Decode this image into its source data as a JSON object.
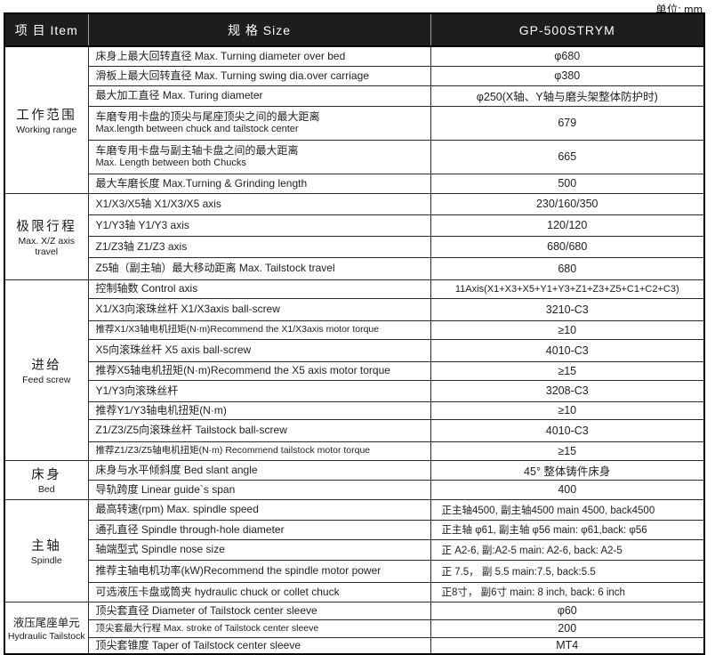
{
  "unit_label": "单位: mm",
  "header": {
    "item": "项 目 Item",
    "size": "规 格 Size",
    "model": "GP-500STRYM"
  },
  "sections": [
    {
      "category_zh": "工作范围",
      "category_en": "Working range",
      "rows": [
        {
          "label": "床身上最大回转直径 Max. Turning diameter over bed",
          "value": "φ680"
        },
        {
          "label": "滑板上最大回转直径 Max. Turning swing dia.over carriage",
          "value": "φ380"
        },
        {
          "label": "最大加工直径 Max. Turing diameter",
          "value": "φ250(X轴、Y轴与磨头架整体防护时)"
        },
        {
          "label": "车磨专用卡盘的顶尖与尾座顶尖之间的最大距离",
          "label2": "Max.length between chuck and tailstock center",
          "value": "679"
        },
        {
          "label": "车磨专用卡盘与副主轴卡盘之间的最大距离",
          "label2": "Max. Length between both Chucks",
          "value": "665"
        },
        {
          "label": "最大车磨长度  Max.Turning & Grinding length",
          "value": "500"
        }
      ]
    },
    {
      "category_zh": "极限行程",
      "category_en": "Max. X/Z axis travel",
      "rows": [
        {
          "label": "X1/X3/X5轴  X1/X3/X5 axis",
          "value": "230/160/350"
        },
        {
          "label": "Y1/Y3轴  Y1/Y3 axis",
          "value": "120/120"
        },
        {
          "label": "Z1/Z3轴  Z1/Z3 axis",
          "value": "680/680"
        },
        {
          "label": "Z5轴（副主轴）最大移动距离 Max. Tailstock travel",
          "value": "680"
        }
      ]
    },
    {
      "category_zh": "进给",
      "category_en": "Feed screw",
      "rows": [
        {
          "label": "控制轴数    Control axis",
          "value": "11Axis(X1+X3+X5+Y1+Y3+Z1+Z3+Z5+C1+C2+C3)"
        },
        {
          "label": "X1/X3向滚珠丝杆 X1/X3axis ball-screw",
          "value": "3210-C3"
        },
        {
          "label": "推荐X1/X3轴电机扭矩(N·m)Recommend the X1/X3axis motor torque",
          "value": "≥10"
        },
        {
          "label": "X5向滚珠丝杆   X5 axis ball-screw",
          "value": "4010-C3"
        },
        {
          "label": "推荐X5轴电机扭矩(N·m)Recommend the X5 axis motor torque",
          "value": "≥15"
        },
        {
          "label": "Y1/Y3向滚珠丝杆",
          "value": "3208-C3"
        },
        {
          "label": "推荐Y1/Y3轴电机扭矩(N·m)",
          "value": "≥10"
        },
        {
          "label": "Z1/Z3/Z5向滚珠丝杆    Tailstock ball-screw",
          "value": "4010-C3"
        },
        {
          "label": "推荐Z1/Z3/Z5轴电机扭矩(N·m) Recommend tailstock motor torque",
          "value": "≥15"
        }
      ]
    },
    {
      "category_zh": "床身",
      "category_en": "Bed",
      "rows": [
        {
          "label": "床身与水平倾斜度 Bed slant angle",
          "value": "45° 整体铸件床身"
        },
        {
          "label": "导轨跨度 Linear guide`s  span",
          "value": "400"
        }
      ]
    },
    {
      "category_zh": "主轴",
      "category_en": "Spindle",
      "rows": [
        {
          "label": "最高转速(rpm) Max. spindle speed",
          "value": "正主轴4500, 副主轴4500   main 4500, back4500"
        },
        {
          "label": "通孔直径 Spindle through-hole diameter",
          "value": "正主轴 φ61, 副主轴 φ56   main: φ61,back: φ56"
        },
        {
          "label": "轴端型式 Spindle nose size",
          "value": "正 A2-6,  副:A2-5   main: A2-6, back: A2-5"
        },
        {
          "label": "推荐主轴电机功率(kW)Recommend the spindle motor power",
          "value": "正 7.5， 副 5.5    main:7.5, back:5.5"
        },
        {
          "label": "可选液压卡盘或筒夹 hydraulic chuck or collet chuck",
          "value": "正8寸， 副6寸    main: 8 inch,  back: 6 inch"
        }
      ]
    },
    {
      "category_zh": "液压尾座单元",
      "category_en": "Hydraulic Tailstock",
      "rows": [
        {
          "label": "顶尖套直径    Diameter of Tailstock center sleeve",
          "value": "φ60"
        },
        {
          "label": "顶尖套最大行程    Max. stroke of Tailstock center sleeve",
          "value": "200"
        },
        {
          "label": "顶尖套锥度    Taper of Tailstock center sleeve",
          "value": "MT4"
        }
      ]
    }
  ]
}
